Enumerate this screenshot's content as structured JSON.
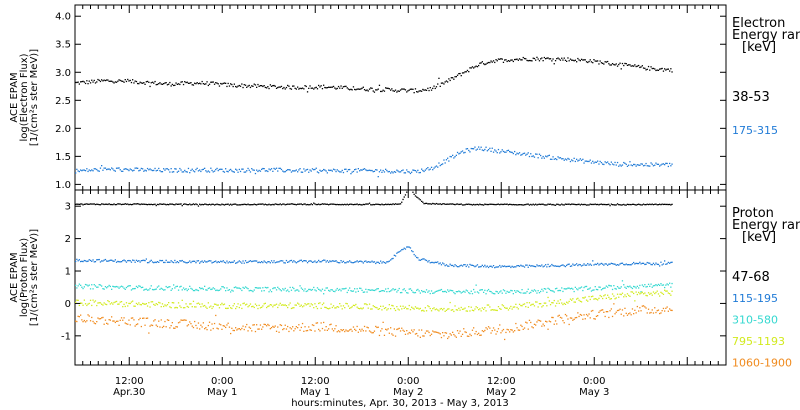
{
  "chart_data": [
    {
      "type": "scatter",
      "panel": "electron",
      "ylabel_lines": [
        "ACE EPAM",
        "log(Electron Flux)",
        "[1/(cm²s ster MeV)]"
      ],
      "ylim": [
        0.9,
        4.2
      ],
      "yticks": [
        "1.0",
        "1.5",
        "2.0",
        "2.5",
        "3.0",
        "3.5",
        "4.0"
      ],
      "legend_title_lines": [
        "Electron",
        "Energy range",
        "[keV]"
      ],
      "series": [
        {
          "name": "38-53",
          "color": "#000000",
          "points": [
            [
              0,
              2.82
            ],
            [
              4,
              2.86
            ],
            [
              8,
              2.84
            ],
            [
              12,
              2.8
            ],
            [
              16,
              2.82
            ],
            [
              20,
              2.78
            ],
            [
              24,
              2.76
            ],
            [
              28,
              2.74
            ],
            [
              32,
              2.75
            ],
            [
              36,
              2.72
            ],
            [
              40,
              2.7
            ],
            [
              44,
              2.68
            ],
            [
              46,
              2.72
            ],
            [
              48,
              2.85
            ],
            [
              50,
              3.0
            ],
            [
              52,
              3.15
            ],
            [
              54,
              3.22
            ],
            [
              58,
              3.25
            ],
            [
              62,
              3.25
            ],
            [
              66,
              3.22
            ],
            [
              70,
              3.15
            ],
            [
              74,
              3.08
            ],
            [
              77,
              3.05
            ]
          ]
        },
        {
          "name": "175-315",
          "color": "#1f7ad6",
          "points": [
            [
              0,
              1.25
            ],
            [
              4,
              1.28
            ],
            [
              8,
              1.27
            ],
            [
              12,
              1.26
            ],
            [
              16,
              1.27
            ],
            [
              20,
              1.26
            ],
            [
              24,
              1.27
            ],
            [
              28,
              1.26
            ],
            [
              32,
              1.25
            ],
            [
              36,
              1.26
            ],
            [
              40,
              1.25
            ],
            [
              44,
              1.24
            ],
            [
              46,
              1.3
            ],
            [
              48,
              1.45
            ],
            [
              50,
              1.6
            ],
            [
              52,
              1.66
            ],
            [
              54,
              1.62
            ],
            [
              58,
              1.55
            ],
            [
              62,
              1.48
            ],
            [
              66,
              1.42
            ],
            [
              70,
              1.37
            ],
            [
              74,
              1.36
            ],
            [
              77,
              1.36
            ]
          ]
        }
      ]
    },
    {
      "type": "scatter",
      "panel": "proton",
      "ylabel_lines": [
        "ACE EPAM",
        "log(Proton Flux)",
        "[1/(cm²s ster MeV)]"
      ],
      "ylim": [
        -1.9,
        3.5
      ],
      "yticks": [
        "-1",
        "0",
        "1",
        "2",
        "3"
      ],
      "legend_title_lines": [
        "Proton",
        "Energy range",
        "[keV]"
      ],
      "series": [
        {
          "name": "47-68",
          "color": "#000000",
          "points": [
            [
              0,
              3.08
            ],
            [
              10,
              3.08
            ],
            [
              20,
              3.07
            ],
            [
              30,
              3.08
            ],
            [
              40,
              3.07
            ],
            [
              42,
              3.1
            ],
            [
              43,
              3.6
            ],
            [
              44,
              3.3
            ],
            [
              45,
              3.1
            ],
            [
              50,
              3.07
            ],
            [
              60,
              3.07
            ],
            [
              70,
              3.07
            ],
            [
              77,
              3.07
            ]
          ]
        },
        {
          "name": "115-195",
          "color": "#1f7ad6",
          "points": [
            [
              0,
              1.35
            ],
            [
              8,
              1.32
            ],
            [
              16,
              1.3
            ],
            [
              24,
              1.3
            ],
            [
              32,
              1.32
            ],
            [
              40,
              1.28
            ],
            [
              43,
              1.8
            ],
            [
              44,
              1.4
            ],
            [
              48,
              1.2
            ],
            [
              56,
              1.15
            ],
            [
              64,
              1.2
            ],
            [
              72,
              1.25
            ],
            [
              77,
              1.25
            ]
          ]
        },
        {
          "name": "310-580",
          "color": "#34d8d0",
          "points": [
            [
              0,
              0.55
            ],
            [
              8,
              0.5
            ],
            [
              16,
              0.48
            ],
            [
              24,
              0.45
            ],
            [
              32,
              0.45
            ],
            [
              40,
              0.42
            ],
            [
              48,
              0.38
            ],
            [
              56,
              0.38
            ],
            [
              64,
              0.45
            ],
            [
              72,
              0.55
            ],
            [
              77,
              0.58
            ]
          ]
        },
        {
          "name": "795-1193",
          "color": "#d2ea1e",
          "points": [
            [
              0,
              0.05
            ],
            [
              8,
              0.0
            ],
            [
              16,
              -0.05
            ],
            [
              24,
              -0.05
            ],
            [
              32,
              -0.05
            ],
            [
              40,
              -0.1
            ],
            [
              48,
              -0.15
            ],
            [
              56,
              -0.1
            ],
            [
              64,
              0.1
            ],
            [
              72,
              0.3
            ],
            [
              77,
              0.35
            ]
          ]
        },
        {
          "name": "1060-1900",
          "color": "#f08a1d",
          "points": [
            [
              0,
              -0.45
            ],
            [
              8,
              -0.55
            ],
            [
              16,
              -0.65
            ],
            [
              24,
              -0.75
            ],
            [
              32,
              -0.7
            ],
            [
              40,
              -0.85
            ],
            [
              48,
              -0.95
            ],
            [
              56,
              -0.75
            ],
            [
              64,
              -0.4
            ],
            [
              72,
              -0.2
            ],
            [
              77,
              -0.15
            ]
          ]
        }
      ]
    }
  ],
  "x_axis": {
    "range_hours": [
      0,
      84
    ],
    "tick_labels": [
      {
        "hour": 7,
        "time": "12:00",
        "date": "Apr.30"
      },
      {
        "hour": 19,
        "time": "0:00",
        "date": "May 1"
      },
      {
        "hour": 31,
        "time": "12:00",
        "date": "May 1"
      },
      {
        "hour": 43,
        "time": "0:00",
        "date": "May 2"
      },
      {
        "hour": 55,
        "time": "12:00",
        "date": "May 2"
      },
      {
        "hour": 67,
        "time": "0:00",
        "date": "May 3"
      }
    ],
    "title": "hours:minutes, Apr. 30, 2013 - May  3, 2013"
  }
}
